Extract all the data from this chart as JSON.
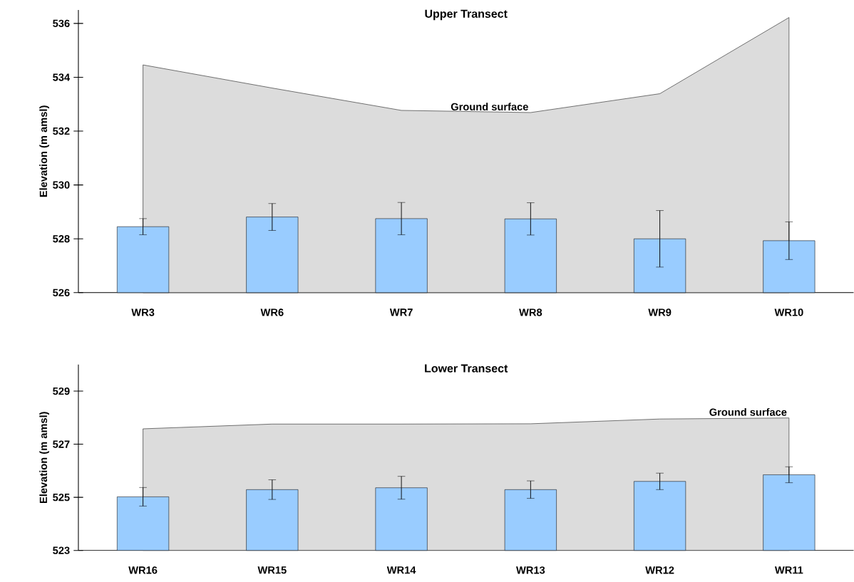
{
  "chart_data": [
    {
      "type": "bar",
      "title": "Upper Transect",
      "ylabel": "Elevation (m amsl)",
      "categories": [
        "WR3",
        "WR6",
        "WR7",
        "WR8",
        "WR9",
        "WR10"
      ],
      "series": [
        {
          "type": "area",
          "color": "#dcdcdc",
          "values": [
            534.46,
            533.6,
            532.77,
            532.69,
            533.39,
            536.22
          ]
        },
        {
          "color": "#99ccff",
          "values": [
            528.45,
            528.81,
            528.75,
            528.74,
            528.0,
            527.93
          ],
          "errors": [
            0.3,
            0.5,
            0.6,
            0.6,
            1.05,
            0.7
          ]
        }
      ],
      "ylim": [
        526,
        536.5
      ],
      "yticks": [
        526,
        528,
        530,
        532,
        534,
        536
      ],
      "annotations": [
        {
          "text": "Ground surface",
          "x": "WR8",
          "y": 532.69
        }
      ]
    },
    {
      "type": "bar",
      "title": "Lower Transect",
      "ylabel": "Elevation (m amsl)",
      "categories": [
        "WR16",
        "WR15",
        "WR14",
        "WR13",
        "WR12",
        "WR11"
      ],
      "series": [
        {
          "type": "area",
          "color": "#dcdcdc",
          "values": [
            527.58,
            527.76,
            527.76,
            527.77,
            527.95,
            527.99
          ]
        },
        {
          "color": "#99ccff",
          "values": [
            525.02,
            525.29,
            525.36,
            525.29,
            525.6,
            525.85
          ],
          "errors": [
            0.35,
            0.37,
            0.43,
            0.33,
            0.31,
            0.3
          ]
        }
      ],
      "ylim": [
        523,
        530
      ],
      "yticks": [
        523,
        525,
        527,
        529
      ],
      "annotations": [
        {
          "text": "Ground surface",
          "x": "WR11",
          "y": 527.99
        }
      ]
    }
  ]
}
